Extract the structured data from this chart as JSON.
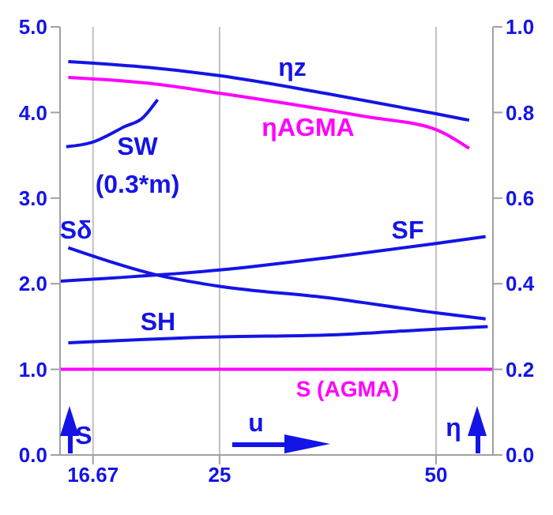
{
  "chart_data": {
    "type": "line",
    "log": "x",
    "xlim": [
      15,
      60
    ],
    "xticks": [
      16.67,
      25,
      50
    ],
    "ylim": [
      0,
      5
    ],
    "yticks": [
      {
        "value": 0,
        "label": "0.0"
      },
      {
        "value": 1,
        "label": "1.0"
      },
      {
        "value": 2,
        "label": "2.0"
      },
      {
        "value": 3,
        "label": "3.0"
      },
      {
        "value": 4,
        "label": "4.0"
      },
      {
        "value": 5,
        "label": "5.0"
      }
    ],
    "y2lim": [
      0,
      1
    ],
    "y2ticks": [
      {
        "value": 0,
        "label": "0.0"
      },
      {
        "value": 0.2,
        "label": "0.2"
      },
      {
        "value": 0.4,
        "label": "0.4"
      },
      {
        "value": 0.6,
        "label": "0.6"
      },
      {
        "value": 0.8,
        "label": "0.8"
      },
      {
        "value": 1,
        "label": "1.0"
      }
    ],
    "grid": true,
    "marker": "none",
    "series": [
      {
        "name": "ηz",
        "color": "#1414e6",
        "axis": "y2",
        "x": [
          15.4,
          20,
          25,
          35,
          50,
          55.6
        ],
        "values": [
          0.919,
          0.905,
          0.886,
          0.845,
          0.797,
          0.782
        ]
      },
      {
        "name": "ηAGMA",
        "color": "#ff00ff",
        "axis": "y2",
        "x": [
          15.4,
          20,
          25,
          40,
          50,
          55.6
        ],
        "values": [
          0.882,
          0.868,
          0.845,
          0.79,
          0.76,
          0.716
        ]
      },
      {
        "name": "SW (0.3*m)",
        "color": "#1414e6",
        "x": [
          15.3,
          16.6,
          18.5,
          19.5,
          20.5
        ],
        "values": [
          3.6,
          3.65,
          3.84,
          3.93,
          4.15
        ]
      },
      {
        "name": "Sδ",
        "color": "#1414e6",
        "x": [
          15.4,
          20.5,
          25,
          35,
          50,
          58.6
        ],
        "values": [
          2.42,
          2.1,
          1.97,
          1.84,
          1.66,
          1.59
        ]
      },
      {
        "name": "SF",
        "color": "#1414e6",
        "x": [
          15,
          25,
          35,
          50,
          58.6
        ],
        "values": [
          2.03,
          2.16,
          2.3,
          2.47,
          2.55
        ]
      },
      {
        "name": "SH",
        "color": "#1414e6",
        "x": [
          15.4,
          25,
          35,
          50,
          59
        ],
        "values": [
          1.31,
          1.38,
          1.4,
          1.47,
          1.5
        ]
      }
    ],
    "ref_lines": [
      {
        "axis": "y",
        "value": 1,
        "label": "S (AGMA)",
        "color": "#ff00ff"
      }
    ],
    "annotations": [
      "S",
      "u",
      "η"
    ]
  }
}
